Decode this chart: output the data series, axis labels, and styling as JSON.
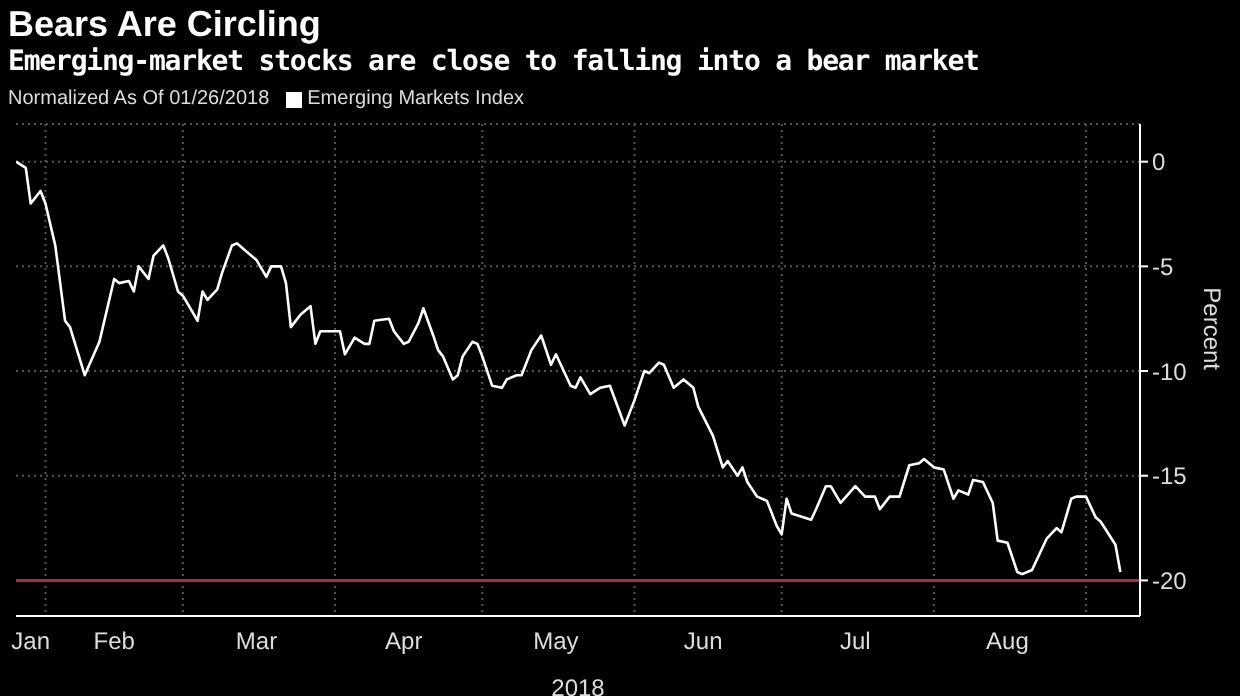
{
  "chart_data": {
    "type": "line",
    "title": "Bears Are Circling",
    "subtitle": "Emerging-market stocks are close to falling into a bear market",
    "legend_title": "Normalized As Of 01/26/2018",
    "xlabel": "2018",
    "ylabel": "Percent",
    "x": [
      "2018-01-26",
      "2018-01-28",
      "2018-01-29",
      "2018-01-31",
      "2018-02-01",
      "2018-02-03",
      "2018-02-05",
      "2018-02-06",
      "2018-02-09",
      "2018-02-12",
      "2018-02-15",
      "2018-02-16",
      "2018-02-18",
      "2018-02-19",
      "2018-02-20",
      "2018-02-22",
      "2018-02-23",
      "2018-02-25",
      "2018-02-26",
      "2018-02-28",
      "2018-03-01",
      "2018-03-03",
      "2018-03-04",
      "2018-03-05",
      "2018-03-06",
      "2018-03-08",
      "2018-03-09",
      "2018-03-11",
      "2018-03-12",
      "2018-03-14",
      "2018-03-16",
      "2018-03-18",
      "2018-03-19",
      "2018-03-21",
      "2018-03-22",
      "2018-03-23",
      "2018-03-25",
      "2018-03-27",
      "2018-03-28",
      "2018-03-29",
      "2018-03-31",
      "2018-04-02",
      "2018-04-03",
      "2018-04-05",
      "2018-04-07",
      "2018-04-08",
      "2018-04-09",
      "2018-04-12",
      "2018-04-13",
      "2018-04-15",
      "2018-04-16",
      "2018-04-18",
      "2018-04-19",
      "2018-04-21",
      "2018-04-22",
      "2018-04-23",
      "2018-04-25",
      "2018-04-26",
      "2018-04-27",
      "2018-04-29",
      "2018-04-30",
      "2018-05-01",
      "2018-05-03",
      "2018-05-05",
      "2018-05-06",
      "2018-05-08",
      "2018-05-09",
      "2018-05-11",
      "2018-05-13",
      "2018-05-15",
      "2018-05-16",
      "2018-05-19",
      "2018-05-20",
      "2018-05-21",
      "2018-05-23",
      "2018-05-25",
      "2018-05-27",
      "2018-05-30",
      "2018-06-01",
      "2018-06-03",
      "2018-06-04",
      "2018-06-06",
      "2018-06-07",
      "2018-06-09",
      "2018-06-11",
      "2018-06-13",
      "2018-06-14",
      "2018-06-17",
      "2018-06-19",
      "2018-06-20",
      "2018-06-22",
      "2018-06-23",
      "2018-06-24",
      "2018-06-26",
      "2018-06-28",
      "2018-06-30",
      "2018-07-01",
      "2018-07-02",
      "2018-07-03",
      "2018-07-07",
      "2018-07-08",
      "2018-07-10",
      "2018-07-11",
      "2018-07-13",
      "2018-07-16",
      "2018-07-18",
      "2018-07-20",
      "2018-07-21",
      "2018-07-23",
      "2018-07-25",
      "2018-07-27",
      "2018-07-29",
      "2018-07-30",
      "2018-08-01",
      "2018-08-03",
      "2018-08-05",
      "2018-08-06",
      "2018-08-08",
      "2018-08-09",
      "2018-08-11",
      "2018-08-13",
      "2018-08-14",
      "2018-08-16",
      "2018-08-18",
      "2018-08-19",
      "2018-08-21",
      "2018-08-24",
      "2018-08-26",
      "2018-08-27",
      "2018-08-29",
      "2018-08-30",
      "2018-09-01",
      "2018-09-03",
      "2018-09-04",
      "2018-09-07",
      "2018-09-08"
    ],
    "series": [
      {
        "name": "Emerging Markets Index",
        "color": "#ffffff",
        "values": [
          0,
          -0.3,
          -2.0,
          -1.4,
          -2.0,
          -4.0,
          -7.6,
          -7.9,
          -10.2,
          -8.6,
          -5.6,
          -5.8,
          -5.7,
          -6.2,
          -5.0,
          -5.6,
          -4.5,
          -4.0,
          -4.6,
          -6.2,
          -6.4,
          -7.2,
          -7.6,
          -6.2,
          -6.6,
          -6.1,
          -5.3,
          -4.0,
          -3.9,
          -4.3,
          -4.7,
          -5.5,
          -5.0,
          -5.0,
          -5.8,
          -7.9,
          -7.3,
          -6.9,
          -8.7,
          -8.1,
          -8.1,
          -8.1,
          -9.2,
          -8.4,
          -8.7,
          -8.7,
          -7.6,
          -7.5,
          -8.1,
          -8.7,
          -8.6,
          -7.7,
          -7.0,
          -8.3,
          -9.0,
          -9.3,
          -10.4,
          -10.2,
          -9.3,
          -8.6,
          -8.7,
          -9.3,
          -10.7,
          -10.8,
          -10.4,
          -10.2,
          -10.2,
          -9.0,
          -8.3,
          -9.7,
          -9.2,
          -10.7,
          -10.8,
          -10.3,
          -11.1,
          -10.8,
          -10.7,
          -12.6,
          -11.4,
          -10.0,
          -10.1,
          -9.6,
          -9.7,
          -10.8,
          -10.4,
          -10.8,
          -11.7,
          -13.1,
          -14.6,
          -14.3,
          -15.0,
          -14.6,
          -15.3,
          -16.0,
          -16.2,
          -17.4,
          -17.8,
          -16.1,
          -16.8,
          -17.1,
          -16.6,
          -15.5,
          -15.5,
          -16.3,
          -15.5,
          -16.0,
          -16.0,
          -16.6,
          -16.0,
          -16.0,
          -14.5,
          -14.4,
          -14.2,
          -14.6,
          -14.7,
          -16.1,
          -15.7,
          -15.9,
          -15.2,
          -15.3,
          -16.3,
          -18.1,
          -18.2,
          -19.6,
          -19.7,
          -19.5,
          -18.0,
          -17.5,
          -17.7,
          -16.1,
          -16.0,
          -16.0,
          -17.0,
          -17.2,
          -18.3,
          -19.6
        ]
      }
    ],
    "xlim": [
      "2018-01-26",
      "2018-09-12"
    ],
    "xticks": [
      {
        "value": "2018-01-29",
        "label": "Jan"
      },
      {
        "value": "2018-02-01",
        "label": null
      },
      {
        "value": "2018-02-15",
        "label": "Feb"
      },
      {
        "value": "2018-03-01",
        "label": null
      },
      {
        "value": "2018-03-16",
        "label": "Mar"
      },
      {
        "value": "2018-04-01",
        "label": null
      },
      {
        "value": "2018-04-15",
        "label": "Apr"
      },
      {
        "value": "2018-05-01",
        "label": null
      },
      {
        "value": "2018-05-16",
        "label": "May"
      },
      {
        "value": "2018-06-01",
        "label": null
      },
      {
        "value": "2018-06-15",
        "label": "Jun"
      },
      {
        "value": "2018-07-01",
        "label": null
      },
      {
        "value": "2018-07-16",
        "label": "Jul"
      },
      {
        "value": "2018-08-01",
        "label": null
      },
      {
        "value": "2018-08-16",
        "label": "Aug"
      },
      {
        "value": "2018-09-01",
        "label": null
      }
    ],
    "ylim": [
      -21.7,
      1.8
    ],
    "yticks": [
      0,
      -5,
      -10,
      -15,
      -20
    ],
    "ref_lines": [
      {
        "axis": "y",
        "value": -20,
        "color": "#b0283c",
        "line_style": "solid"
      }
    ],
    "grid": true,
    "legend": "top left",
    "line_style": "solid",
    "marker": "none"
  }
}
